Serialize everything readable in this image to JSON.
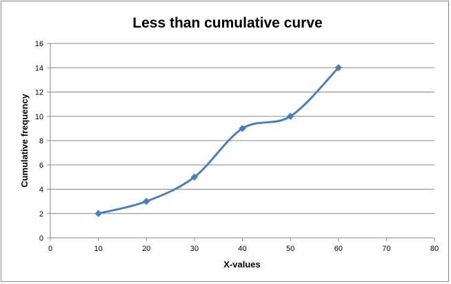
{
  "chart_data": {
    "type": "line",
    "title": "Less than cumulative curve",
    "xlabel": "X-values",
    "ylabel": "Cumulative frequency",
    "xlim": [
      0,
      80
    ],
    "ylim": [
      0,
      16
    ],
    "x_ticks": [
      0,
      10,
      20,
      30,
      40,
      50,
      60,
      70,
      80
    ],
    "y_ticks": [
      0,
      2,
      4,
      6,
      8,
      10,
      12,
      14,
      16
    ],
    "grid": true,
    "legend": "none",
    "series": [
      {
        "x": [
          10,
          20,
          30,
          40,
          50,
          60
        ],
        "values": [
          2,
          3,
          5,
          9,
          10,
          14
        ],
        "color": "#4A7EBB",
        "marker": "diamond",
        "smooth": true
      }
    ]
  }
}
